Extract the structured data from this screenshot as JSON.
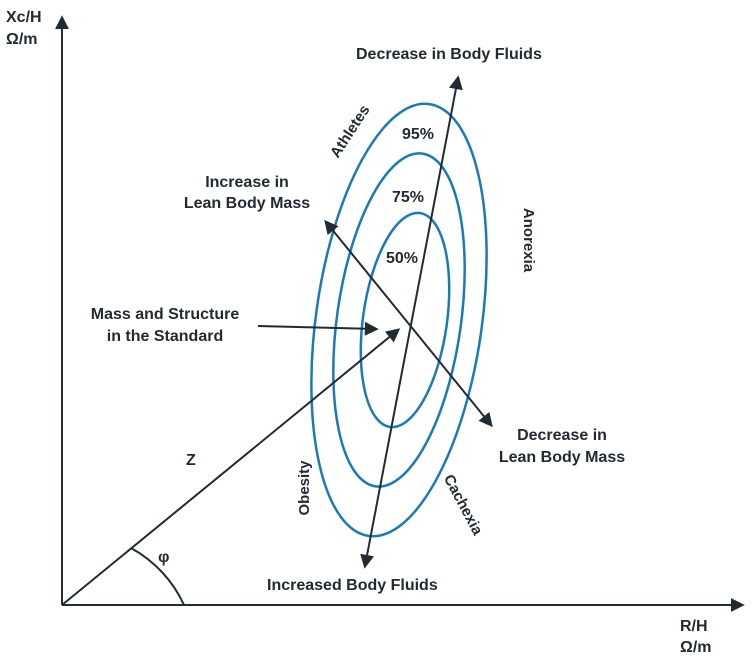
{
  "axes": {
    "y_label_line1": "Xc/H",
    "y_label_line2": "Ω/m",
    "x_label_line1": "R/H",
    "x_label_line2": "Ω/m"
  },
  "vector": {
    "magnitude_label": "Z",
    "angle_label": "φ"
  },
  "ellipses": {
    "labels": [
      "50%",
      "75%",
      "95%"
    ]
  },
  "arrows": {
    "top": "Decrease in Body Fluids",
    "bottom": "Increased Body Fluids",
    "upper_left_line1": "Increase in",
    "upper_left_line2": "Lean Body Mass",
    "lower_right_line1": "Decrease in",
    "lower_right_line2": "Lean Body Mass",
    "center_line1": "Mass and Structure",
    "center_line2": "in the Standard"
  },
  "regions": {
    "athletes": "Athletes",
    "anorexia": "Anorexia",
    "obesity": "Obesity",
    "cachexia": "Cachexia"
  },
  "colors": {
    "ellipse": "#1a7ab8",
    "lines": "#222a33"
  }
}
